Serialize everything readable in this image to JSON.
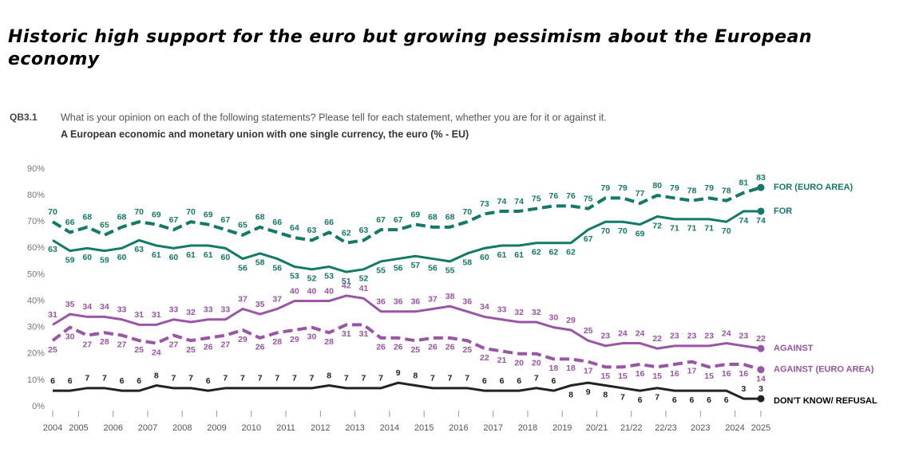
{
  "chart_data": {
    "type": "line",
    "title": "Historic high support for the euro but growing pessimism about the European economy",
    "question_code": "QB3.1",
    "question": "What is your opinion on each of the following statements? Please tell for each statement, whether you are for it or against it.",
    "subtitle": "A European economic and monetary union with one single currency, the euro (% - EU)",
    "categories": [
      "2004",
      "2005",
      null,
      "2006",
      null,
      "2007",
      null,
      "2008",
      null,
      "2009",
      null,
      "2010",
      null,
      "2011",
      null,
      "2012",
      null,
      "2013",
      null,
      "2014",
      null,
      "2015",
      null,
      "2016",
      null,
      "2017",
      null,
      "2018",
      null,
      "2019",
      null,
      "20/21",
      null,
      "21/22",
      null,
      "22/23",
      null,
      "2023",
      null,
      "2024",
      null,
      "2025"
    ],
    "ylim": [
      0,
      90
    ],
    "yticks": [
      {
        "value": 0,
        "label": "0%"
      },
      {
        "value": 10,
        "label": "10%"
      },
      {
        "value": 20,
        "label": "20%"
      },
      {
        "value": 30,
        "label": "30%"
      },
      {
        "value": 40,
        "label": "40%"
      },
      {
        "value": 50,
        "label": "50%"
      },
      {
        "value": 60,
        "label": "60%"
      },
      {
        "value": 70,
        "label": "70%"
      },
      {
        "value": 80,
        "label": "80%"
      },
      {
        "value": 90,
        "label": "90%"
      }
    ],
    "grid": false,
    "series": [
      {
        "name": "FOR (EURO AREA)",
        "color": "#137a68",
        "style": "dashed",
        "label_side": "above",
        "values": [
          70,
          66,
          68,
          65,
          68,
          70,
          69,
          67,
          70,
          69,
          67,
          65,
          68,
          66,
          64,
          63,
          66,
          62,
          63,
          67,
          67,
          69,
          68,
          68,
          70,
          73,
          74,
          74,
          75,
          76,
          76,
          75,
          79,
          79,
          77,
          80,
          79,
          78,
          79,
          78,
          81,
          83
        ]
      },
      {
        "name": "FOR",
        "color": "#137a68",
        "style": "solid",
        "label_side": "below",
        "values": [
          63,
          59,
          60,
          59,
          60,
          63,
          61,
          60,
          61,
          61,
          60,
          56,
          58,
          56,
          53,
          52,
          53,
          51,
          52,
          55,
          56,
          57,
          56,
          55,
          58,
          60,
          61,
          61,
          62,
          62,
          62,
          67,
          70,
          70,
          69,
          72,
          71,
          71,
          71,
          70,
          74,
          74
        ]
      },
      {
        "name": "AGAINST",
        "color": "#9a55a6",
        "style": "solid",
        "label_side": "above",
        "values": [
          31,
          35,
          34,
          34,
          33,
          31,
          31,
          33,
          32,
          33,
          33,
          37,
          35,
          37,
          40,
          40,
          40,
          42,
          41,
          36,
          36,
          36,
          37,
          38,
          36,
          34,
          33,
          32,
          32,
          30,
          29,
          25,
          23,
          24,
          24,
          22,
          23,
          23,
          23,
          24,
          23,
          22
        ]
      },
      {
        "name": "AGAINST (EURO AREA)",
        "color": "#9a55a6",
        "style": "dashed",
        "label_side": "below",
        "values": [
          25,
          30,
          27,
          28,
          27,
          25,
          24,
          27,
          25,
          26,
          27,
          29,
          26,
          28,
          29,
          30,
          28,
          31,
          31,
          26,
          26,
          25,
          26,
          26,
          25,
          22,
          21,
          20,
          20,
          18,
          18,
          17,
          15,
          15,
          16,
          15,
          16,
          17,
          15,
          16,
          16,
          14
        ]
      },
      {
        "name": "DON'T KNOW/ REFUSAL",
        "color": "#222222",
        "style": "solid",
        "label_side": "above",
        "values": [
          6,
          6,
          7,
          7,
          6,
          6,
          8,
          7,
          7,
          6,
          7,
          7,
          7,
          7,
          7,
          7,
          8,
          7,
          7,
          7,
          9,
          8,
          7,
          7,
          7,
          6,
          6,
          6,
          7,
          6,
          8,
          9,
          8,
          7,
          6,
          7,
          6,
          6,
          6,
          6,
          3,
          3
        ]
      }
    ]
  }
}
